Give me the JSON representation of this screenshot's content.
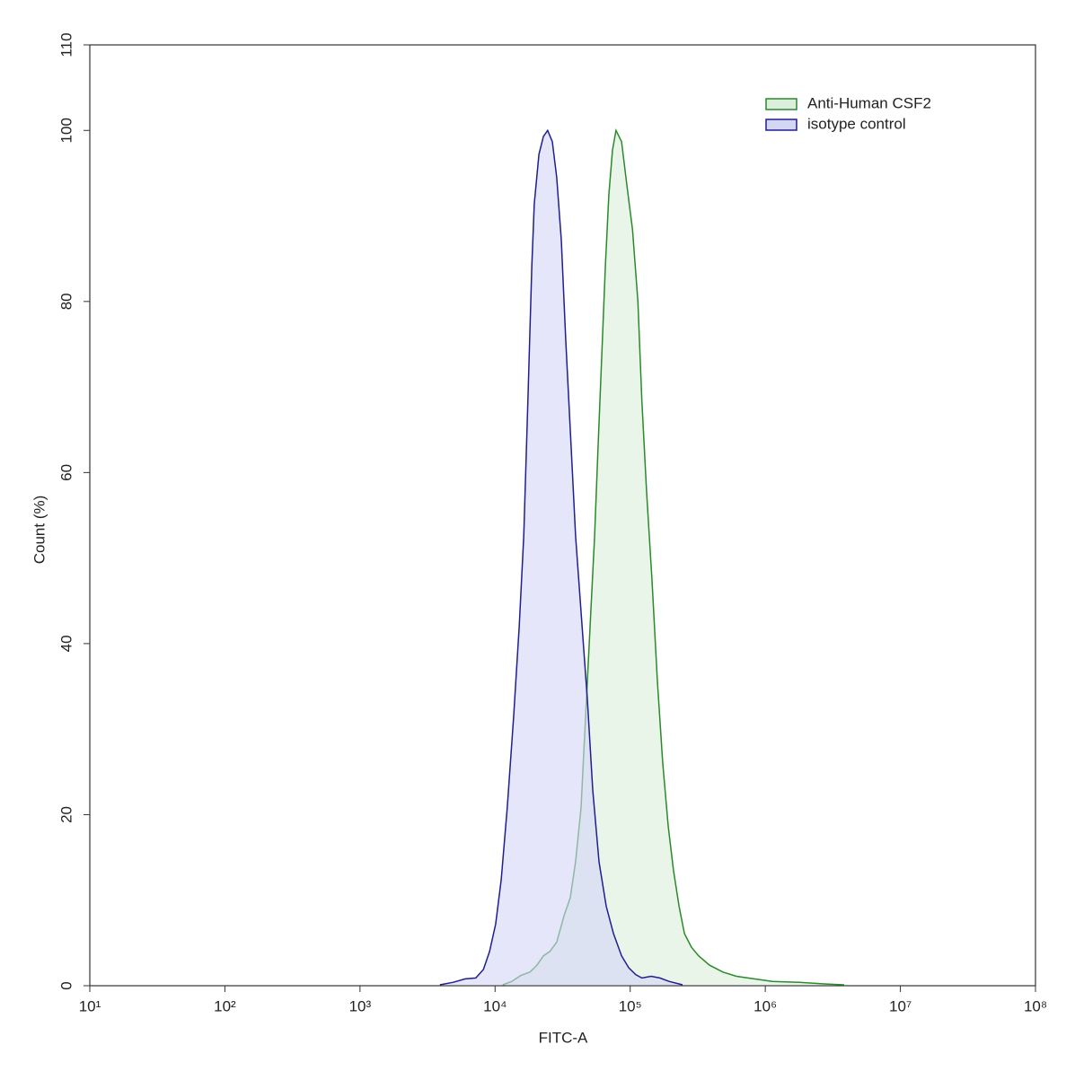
{
  "chart_data": {
    "type": "histogram-overlay",
    "x_label": "FITC-A",
    "y_label": "Count (%)",
    "xscale": "log",
    "xlim": [
      10,
      100000000
    ],
    "xticks": [
      {
        "value": 10,
        "label": "10¹"
      },
      {
        "value": 100,
        "label": "10²"
      },
      {
        "value": 1000,
        "label": "10³"
      },
      {
        "value": 10000,
        "label": "10⁴"
      },
      {
        "value": 100000,
        "label": "10⁵"
      },
      {
        "value": 1000000,
        "label": "10⁶"
      },
      {
        "value": 10000000,
        "label": "10⁷"
      },
      {
        "value": 100000000,
        "label": "10⁸"
      }
    ],
    "ylim": [
      0,
      110
    ],
    "yticks": [
      0,
      20,
      40,
      60,
      80,
      100,
      110
    ],
    "legend": "upper right",
    "series": [
      {
        "name": "Anti-Human CSF2",
        "color": "#2a8a2a",
        "fill": "#dcefdc",
        "x": [
          11400,
          13300,
          15500,
          18100,
          20400,
          22800,
          25400,
          28600,
          32400,
          36000,
          39400,
          43300,
          46700,
          50500,
          54500,
          57800,
          61500,
          65500,
          69500,
          74000,
          78500,
          86300,
          94400,
          104000,
          114000,
          122000,
          132000,
          145000,
          159000,
          174000,
          191000,
          209000,
          230000,
          252000,
          284000,
          321000,
          386000,
          486000,
          611000,
          830000,
          1130000,
          1790000,
          2830000,
          3840000
        ],
        "values": [
          0.1,
          0.5,
          1.2,
          1.6,
          2.4,
          3.5,
          4.0,
          5.1,
          8.2,
          10.3,
          14.5,
          20.8,
          31.4,
          42.1,
          52.6,
          62.9,
          73.5,
          84.2,
          92.4,
          97.7,
          100,
          98.7,
          93.7,
          88.4,
          80.0,
          68.4,
          57.9,
          47.4,
          35.6,
          26.1,
          18.7,
          13.5,
          9.3,
          6.1,
          4.5,
          3.5,
          2.4,
          1.6,
          1.1,
          0.8,
          0.5,
          0.4,
          0.2,
          0.1
        ]
      },
      {
        "name": "isotype control",
        "color": "#1f1f8f",
        "fill": "#d4d6f6",
        "x": [
          3900,
          4900,
          6000,
          7200,
          8200,
          9100,
          10100,
          11100,
          12300,
          13700,
          15100,
          16300,
          17500,
          18700,
          19500,
          21100,
          22800,
          24500,
          26500,
          28600,
          30900,
          33300,
          36600,
          39400,
          44000,
          48200,
          52800,
          58800,
          66400,
          75200,
          86300,
          97500,
          110000,
          122000,
          143000,
          166000,
          194000,
          244000
        ],
        "values": [
          0.1,
          0.4,
          0.8,
          0.9,
          1.9,
          4.0,
          7.2,
          12.4,
          20.8,
          31.4,
          42.1,
          52.6,
          68.4,
          84.2,
          91.4,
          97.2,
          99.3,
          100,
          98.7,
          94.5,
          87.2,
          75.6,
          62.9,
          52.6,
          42.1,
          33.5,
          22.9,
          14.5,
          9.3,
          6.1,
          3.5,
          2.1,
          1.3,
          0.9,
          1.1,
          0.9,
          0.5,
          0.1
        ]
      }
    ]
  }
}
